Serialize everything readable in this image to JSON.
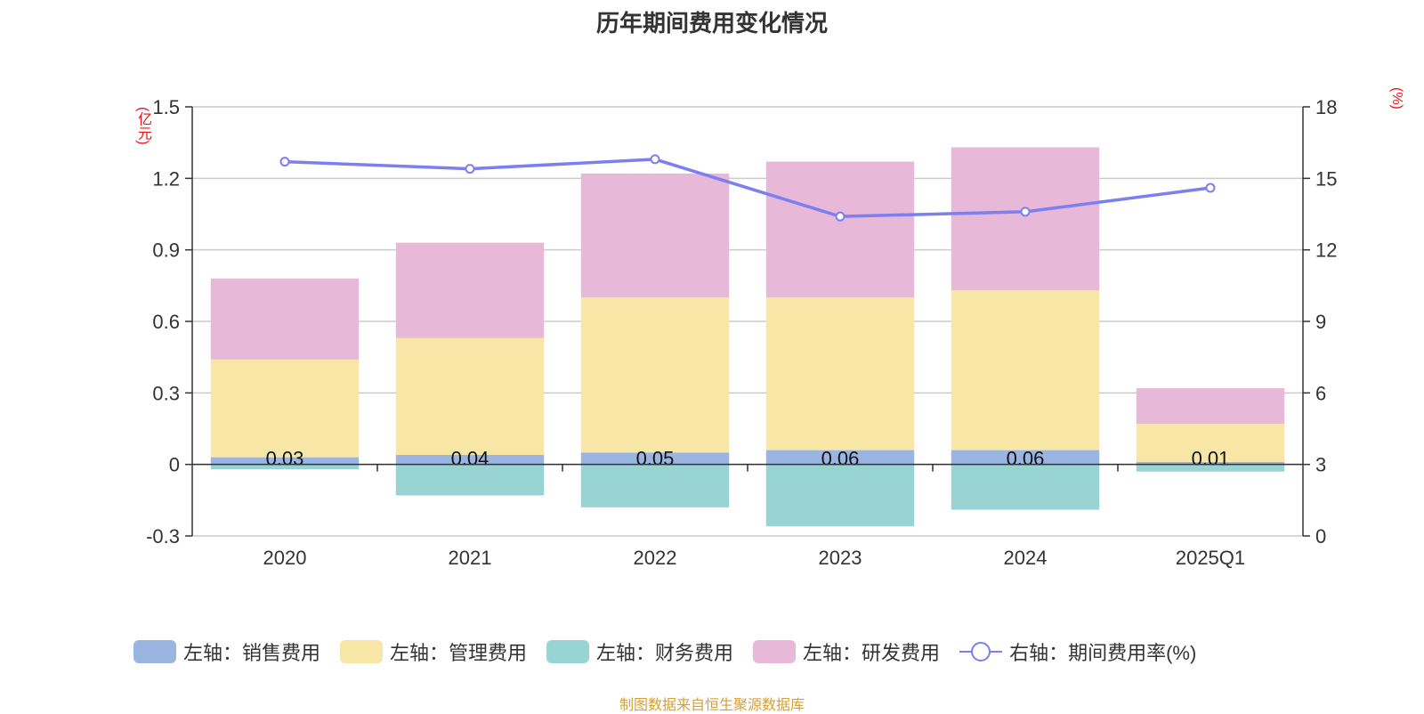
{
  "chart_data": {
    "type": "bar",
    "title": "历年期间费用变化情况",
    "left_unit": "(亿元)",
    "right_unit": "(%)",
    "categories": [
      "2020",
      "2021",
      "2022",
      "2023",
      "2024",
      "2025Q1"
    ],
    "ylim_left": [
      -0.3,
      1.5
    ],
    "yticks_left": [
      "-0.3",
      "0",
      "0.3",
      "0.6",
      "0.9",
      "1.2",
      "1.5"
    ],
    "ylim_right": [
      0,
      18
    ],
    "yticks_right": [
      "0",
      "3",
      "6",
      "9",
      "12",
      "15",
      "18"
    ],
    "grid": true,
    "legend_position": "bottom",
    "series": [
      {
        "name": "左轴：销售费用",
        "type": "bar",
        "color": "#9bb5e3",
        "values": [
          0.03,
          0.04,
          0.05,
          0.06,
          0.06,
          0.01
        ],
        "labels": [
          "0.03",
          "0.04",
          "0.05",
          "0.06",
          "0.06",
          "0.01"
        ]
      },
      {
        "name": "左轴：管理费用",
        "type": "bar",
        "color": "#f7e6a6",
        "values": [
          0.41,
          0.49,
          0.65,
          0.64,
          0.67,
          0.16
        ]
      },
      {
        "name": "左轴：财务费用",
        "type": "bar",
        "color": "#99d4d4",
        "values": [
          -0.02,
          -0.13,
          -0.18,
          -0.26,
          -0.19,
          -0.03
        ]
      },
      {
        "name": "左轴：研发费用",
        "type": "bar",
        "color": "#e8b8d9",
        "values": [
          0.34,
          0.4,
          0.52,
          0.57,
          0.6,
          0.15
        ]
      },
      {
        "name": "右轴：期间费用率(%)",
        "type": "line",
        "color": "#7b7ff0",
        "values": [
          15.7,
          15.4,
          15.8,
          13.4,
          13.6,
          14.6
        ]
      }
    ]
  },
  "source": "制图数据来自恒生聚源数据库"
}
